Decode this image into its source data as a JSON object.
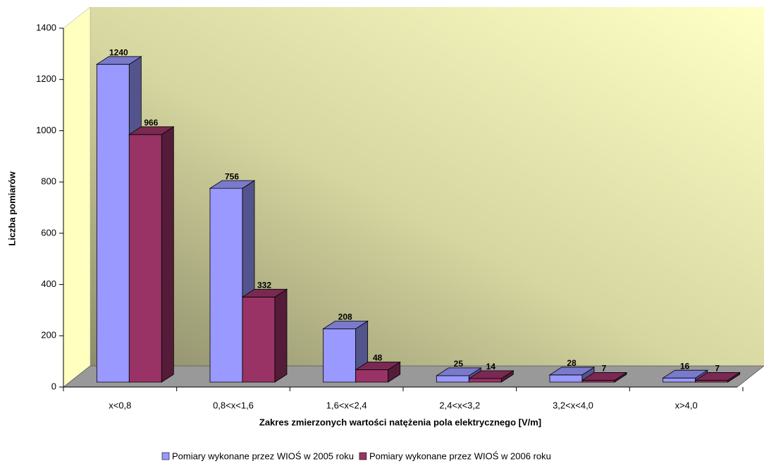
{
  "chart_data": {
    "type": "bar3d",
    "xlabel": "Zakres zmierzonych wartości natężenia pola elektrycznego [V/m]",
    "ylabel": "Liczba pomiarów",
    "categories": [
      "x<0,8",
      "0,8<x<1,6",
      "1,6<x<2,4",
      "2,4<x<3,2",
      "3,2<x<4,0",
      "x>4,0"
    ],
    "series": [
      {
        "name": "Pomiary wykonane przez WIOŚ w 2005 roku",
        "color": "#9999ff",
        "values": [
          1240,
          756,
          208,
          25,
          28,
          16
        ]
      },
      {
        "name": "Pomiary wykonane przez WIOŚ w 2006 roku",
        "color": "#993366",
        "values": [
          966,
          332,
          48,
          14,
          7,
          7
        ]
      }
    ],
    "ylim": [
      0,
      1400
    ],
    "yticks": [
      0,
      200,
      400,
      600,
      800,
      1000,
      1200,
      1400
    ],
    "legend": "bottom"
  }
}
